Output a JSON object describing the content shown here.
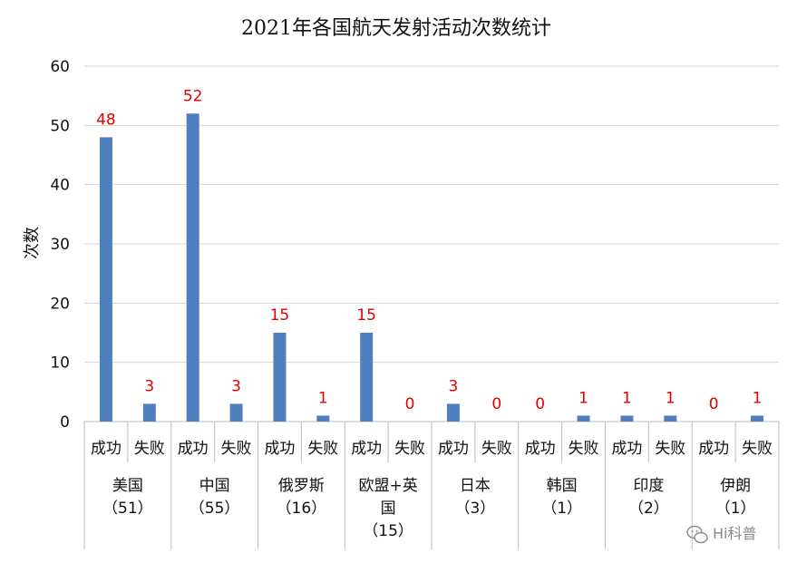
{
  "chart_data": {
    "type": "bar",
    "title": "2021年各国航天发射活动次数统计",
    "ylabel": "次数",
    "ylim": [
      0,
      60
    ],
    "yticks": [
      "0",
      "10",
      "20",
      "30",
      "40",
      "50",
      "60"
    ],
    "grid": true,
    "bar_color": "#4f7fbf",
    "label_color": "#e00000",
    "categories": [
      "成功",
      "失败",
      "成功",
      "失败",
      "成功",
      "失败",
      "成功",
      "失败",
      "成功",
      "失败",
      "成功",
      "失败",
      "成功",
      "失败",
      "成功",
      "失败"
    ],
    "values": [
      48,
      3,
      52,
      3,
      15,
      1,
      15,
      0,
      3,
      0,
      0,
      1,
      1,
      1,
      0,
      1
    ],
    "data_labels": [
      "48",
      "3",
      "52",
      "3",
      "15",
      "1",
      "15",
      "0",
      "3",
      "0",
      "0",
      "1",
      "1",
      "1",
      "0",
      "1"
    ],
    "groups": [
      {
        "lines": [
          "美国",
          "（51）"
        ]
      },
      {
        "lines": [
          "中国",
          "（55）"
        ]
      },
      {
        "lines": [
          "俄罗斯",
          "（16）"
        ]
      },
      {
        "lines": [
          "欧盟+英",
          "国",
          "（15）"
        ]
      },
      {
        "lines": [
          "日本",
          "（3）"
        ]
      },
      {
        "lines": [
          "韩国",
          "（1）"
        ]
      },
      {
        "lines": [
          "印度",
          "（2）"
        ]
      },
      {
        "lines": [
          "伊朗",
          "（1）"
        ]
      }
    ]
  },
  "watermark": {
    "icon": "wechat-icon",
    "text": "Hi科普"
  }
}
